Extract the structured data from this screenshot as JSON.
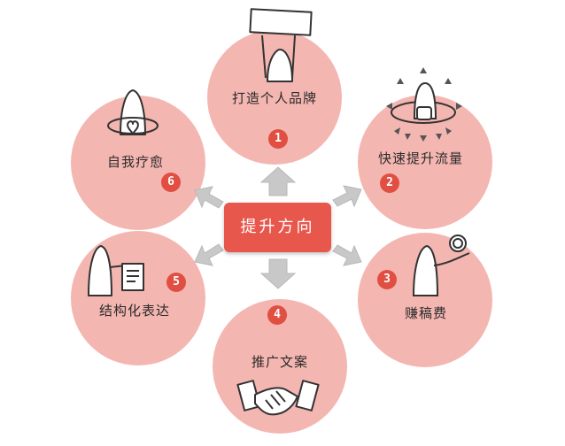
{
  "center": {
    "label": "提升方向"
  },
  "items": [
    {
      "number": "1",
      "label": "打造个人品牌",
      "icon": "sign-holder-icon"
    },
    {
      "number": "2",
      "label": "快速提升流量",
      "icon": "traffic-arrows-icon"
    },
    {
      "number": "3",
      "label": "赚稿费",
      "icon": "coin-hand-icon"
    },
    {
      "number": "4",
      "label": "推广文案",
      "icon": "handshake-icon"
    },
    {
      "number": "5",
      "label": "结构化表达",
      "icon": "document-icon"
    },
    {
      "number": "6",
      "label": "自我疗愈",
      "icon": "heart-hug-icon"
    }
  ],
  "colors": {
    "circle": "#f4b6b1",
    "badge": "#e04f42",
    "center": "#e8574b",
    "arrow": "#c8c8c8"
  }
}
